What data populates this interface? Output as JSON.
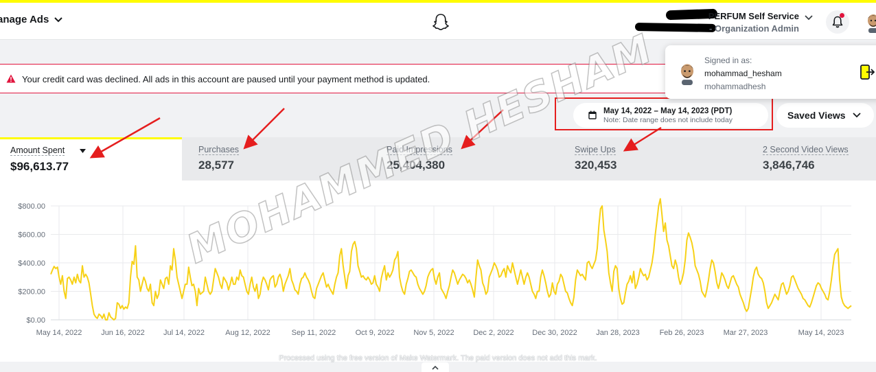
{
  "header": {
    "manage_ads": "anage Ads",
    "account_name": "PERFUM Self Service",
    "account_role": "- Organization Admin"
  },
  "alert": {
    "message": "Your credit card was declined. All ads in this account are paused until your payment method is updated."
  },
  "popover": {
    "signed_in_as": "Signed in as:",
    "username": "mohammad_hesham",
    "email": "mohammadhesh"
  },
  "date_range": {
    "range": "May 14, 2022 – May 14, 2023 (PDT)",
    "note": "Note: Date range does not include today"
  },
  "saved_views": "Saved Views",
  "metrics": [
    {
      "label": "Amount Spent",
      "value": "$96,613.77"
    },
    {
      "label": "Purchases",
      "value": "28,577"
    },
    {
      "label": "Paid Impressions",
      "value": "25,404,380"
    },
    {
      "label": "Swipe Ups",
      "value": "320,453"
    },
    {
      "label": "2 Second Video Views",
      "value": "3,846,746"
    }
  ],
  "chart_data": {
    "type": "line",
    "color": "#f7d117",
    "y_ticks": [
      "$800.00",
      "$600.00",
      "$400.00",
      "$200.00",
      "$0.00"
    ],
    "ylim": [
      0,
      800
    ],
    "x_ticks": [
      "May 14, 2022",
      "Jun 16, 2022",
      "Jul 14, 2022",
      "Aug 12, 2022",
      "Sep 11, 2022",
      "Oct 9, 2022",
      "Nov 5, 2022",
      "Dec 2, 2022",
      "Dec 30, 2022",
      "Jan 28, 2023",
      "Feb 26, 2023",
      "Mar 27, 2023",
      "May 14, 2023"
    ],
    "values": [
      320,
      350,
      375,
      360,
      370,
      300,
      250,
      310,
      200,
      150,
      290,
      300,
      280,
      250,
      300,
      260,
      320,
      275,
      260,
      380,
      300,
      320,
      300,
      260,
      180,
      100,
      40,
      20,
      10,
      40,
      30,
      10,
      40,
      0,
      0,
      50,
      20,
      10,
      0,
      10,
      120,
      110,
      80,
      100,
      75,
      90,
      80,
      120,
      300,
      410,
      390,
      520,
      300,
      280,
      200,
      250,
      300,
      270,
      220,
      200,
      250,
      120,
      100,
      200,
      150,
      180,
      280,
      250,
      220,
      290,
      300,
      250,
      380,
      350,
      500,
      420,
      300,
      250,
      200,
      150,
      200,
      250,
      250,
      370,
      300,
      240,
      250,
      200,
      100,
      220,
      180,
      190,
      200,
      300,
      250,
      200,
      180,
      200,
      280,
      360,
      330,
      300,
      250,
      220,
      300,
      280,
      260,
      210,
      250,
      300,
      250,
      250,
      300,
      280,
      350,
      310,
      300,
      250,
      200,
      180,
      250,
      300,
      230,
      200,
      250,
      150,
      180,
      260,
      300,
      280,
      250,
      210,
      280,
      300,
      310,
      230,
      250,
      300,
      320,
      280,
      200,
      250,
      280,
      310,
      360,
      280,
      250,
      210,
      200,
      180,
      250,
      290,
      300,
      330,
      300,
      280,
      250,
      200,
      160,
      150,
      220,
      250,
      280,
      310,
      330,
      280,
      230,
      250,
      220,
      200,
      180,
      250,
      300,
      330,
      450,
      500,
      380,
      300,
      220,
      310,
      340,
      480,
      530,
      550,
      500,
      380,
      340,
      300,
      310,
      290,
      280,
      300,
      280,
      250,
      260,
      310,
      250,
      230,
      200,
      290,
      340,
      380,
      280,
      330,
      300,
      320,
      350,
      420,
      440,
      480,
      300,
      240,
      200,
      180,
      250,
      290,
      340,
      350,
      330,
      310,
      300,
      250,
      220,
      200,
      180,
      200,
      240,
      300,
      330,
      350,
      360,
      290,
      250,
      300,
      330,
      220,
      200,
      180,
      150,
      200,
      240,
      300,
      350,
      330,
      290,
      250,
      280,
      300,
      320,
      310,
      290,
      260,
      280,
      250,
      210,
      160,
      300,
      420,
      380,
      350,
      260,
      230,
      180,
      200,
      300,
      330,
      360,
      400,
      380,
      350,
      300,
      310,
      340,
      360,
      300,
      380,
      350,
      330,
      400,
      350,
      300,
      250,
      300,
      350,
      300,
      250,
      300,
      330,
      300,
      250,
      200,
      180,
      150,
      200,
      200,
      300,
      350,
      310,
      260,
      200,
      160,
      180,
      260,
      200,
      180,
      250,
      270,
      320,
      300,
      250,
      200,
      190,
      150,
      120,
      100,
      160,
      280,
      350,
      330,
      310,
      320,
      300,
      280,
      400,
      410,
      380,
      360,
      390,
      420,
      500,
      660,
      780,
      800,
      630,
      560,
      480,
      330,
      260,
      200,
      340,
      380,
      360,
      220,
      150,
      110,
      120,
      190,
      250,
      270,
      310,
      260,
      340,
      220,
      250,
      300,
      360,
      330,
      310,
      320,
      280,
      300,
      350,
      400,
      480,
      600,
      700,
      800,
      850,
      740,
      620,
      680,
      560,
      520,
      450,
      380,
      360,
      420,
      380,
      300,
      250,
      280,
      330,
      420,
      560,
      610,
      580,
      540,
      480,
      380,
      350,
      320,
      270,
      200,
      180,
      160,
      210,
      280,
      360,
      420,
      400,
      340,
      260,
      220,
      270,
      330,
      310,
      280,
      240,
      220,
      260,
      300,
      310,
      280,
      250,
      230,
      180,
      150,
      120,
      80,
      60,
      80,
      150,
      220,
      300,
      350,
      370,
      320,
      300,
      290,
      260,
      200,
      120,
      80,
      100,
      120,
      150,
      180,
      160,
      140,
      200,
      250,
      260,
      220,
      180,
      200,
      240,
      300,
      310,
      280,
      250,
      220,
      200,
      180,
      150,
      140,
      120,
      100,
      90,
      120,
      160,
      200,
      240,
      260,
      250,
      220,
      200,
      180,
      150,
      140,
      200,
      280,
      380,
      460,
      480,
      500,
      280,
      160,
      120,
      100,
      90,
      80,
      90,
      100
    ],
    "title": "",
    "xlabel": "",
    "ylabel": ""
  },
  "watermark": "MOHAMMED HESHAM",
  "bottom_note": "Processed using the free version of Make Watermark. The paid version does not add this mark."
}
